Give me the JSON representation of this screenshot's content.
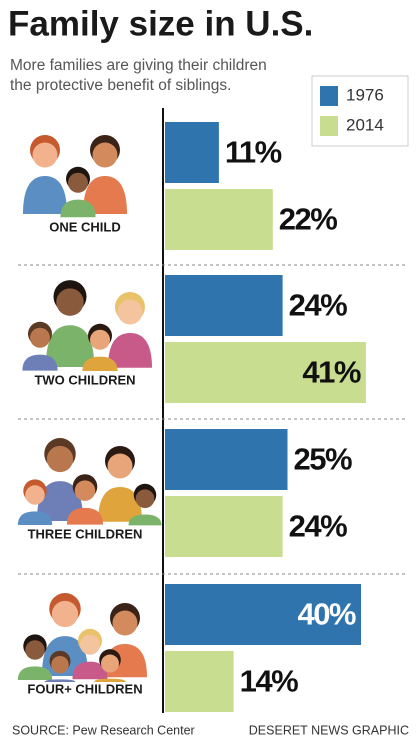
{
  "chart_data": {
    "type": "bar",
    "orientation": "horizontal",
    "title": "Family size in U.S.",
    "subtitle": [
      "More families are giving their children",
      "the protective benefit of siblings."
    ],
    "categories": [
      "ONE CHILD",
      "TWO CHILDREN",
      "THREE CHILDREN",
      "FOUR+ CHILDREN"
    ],
    "series": [
      {
        "name": "1976",
        "color": "#2f74ad",
        "values": [
          11,
          24,
          25,
          40
        ],
        "value_labels": [
          "11%",
          "24%",
          "25%",
          "40%"
        ]
      },
      {
        "name": "2014",
        "color": "#c8dd8f",
        "values": [
          22,
          41,
          24,
          14
        ],
        "value_labels": [
          "22%",
          "41%",
          "24%",
          "14%"
        ]
      }
    ],
    "legend": "top-right",
    "source": "SOURCE: Pew Research Center",
    "credit": "DESERET NEWS GRAPHIC"
  }
}
